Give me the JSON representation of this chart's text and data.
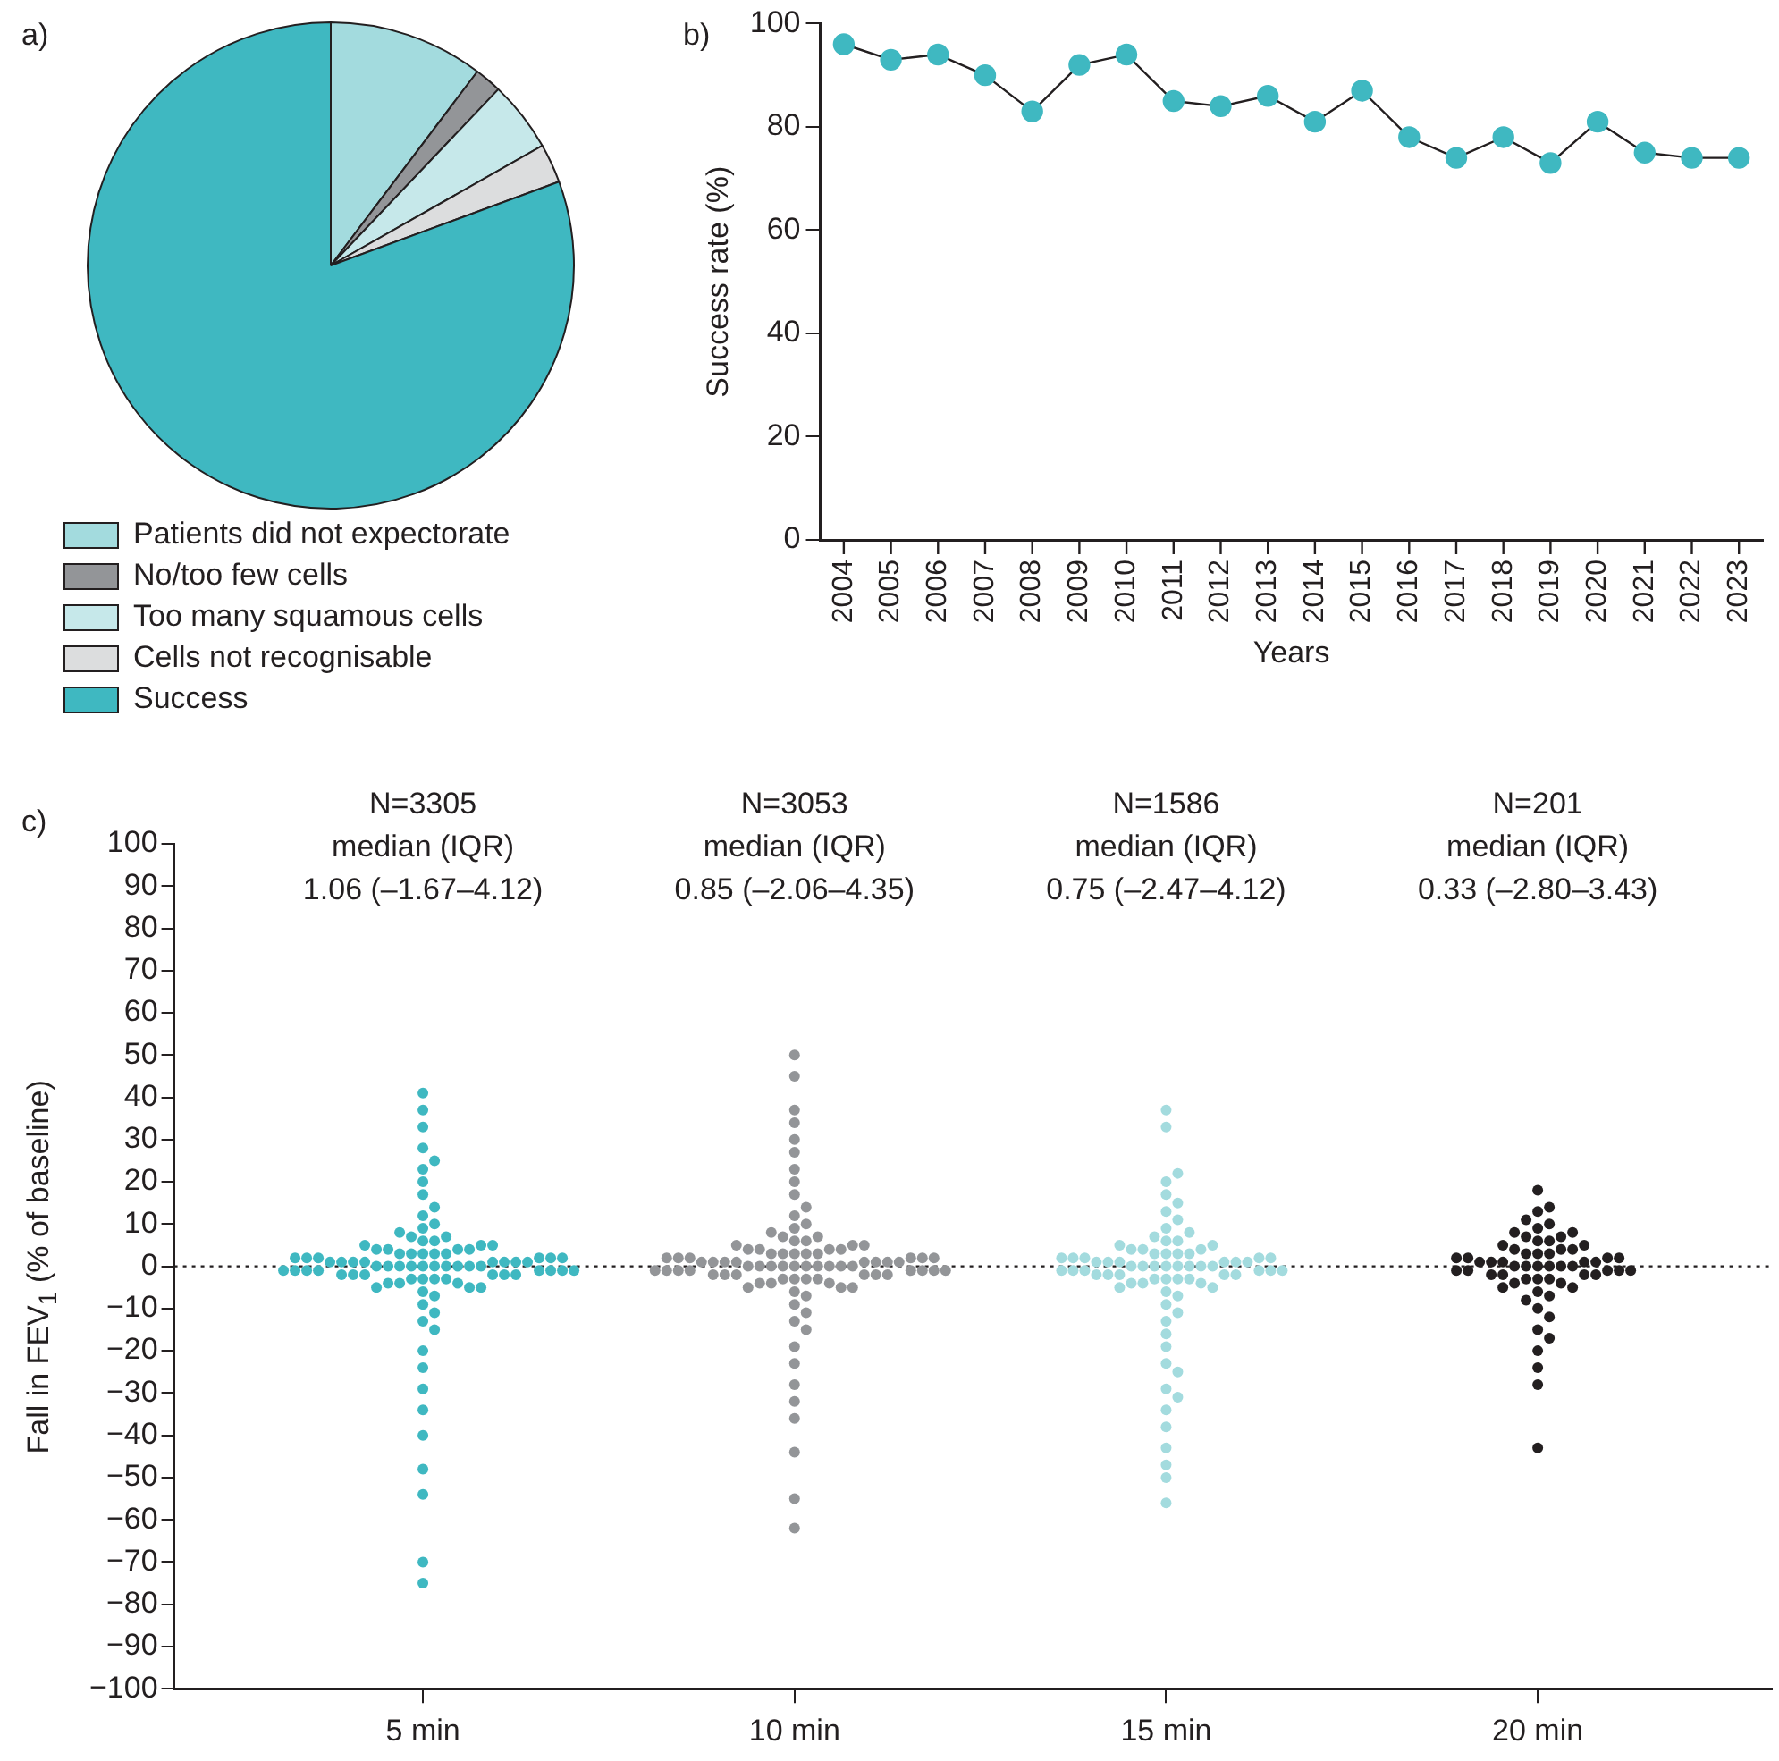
{
  "chart_data": [
    {
      "type": "pie",
      "annotations": [
        "a)"
      ],
      "legend": "bottom",
      "categories": [
        "Patients did not expectorate",
        "No/too few cells",
        "Too many squamous cells",
        "Cells not recognisable",
        "Success"
      ],
      "values": [
        10.3,
        1.8,
        4.7,
        2.6,
        80.6
      ],
      "colors": [
        "#a3dbde",
        "#939598",
        "#c6e8ea",
        "#dcddde",
        "#3fb8c1"
      ]
    },
    {
      "type": "line",
      "annotations": [
        "b)"
      ],
      "xlabel": "Years",
      "ylabel": "Success rate (%)",
      "categories": [
        "2004",
        "2005",
        "2006",
        "2007",
        "2008",
        "2009",
        "2010",
        "2011",
        "2012",
        "2013",
        "2014",
        "2015",
        "2016",
        "2017",
        "2018",
        "2019",
        "2020",
        "2021",
        "2022",
        "2023"
      ],
      "marker": "circle",
      "ylim": [
        0,
        100
      ],
      "yticks": [
        0,
        20,
        40,
        60,
        80,
        100
      ],
      "series": [
        {
          "color": "#3fb8c1",
          "values": [
            96,
            93,
            94,
            90,
            83,
            92,
            94,
            85,
            84,
            86,
            81,
            87,
            78,
            74,
            78,
            73,
            81,
            75,
            74,
            74
          ]
        }
      ]
    },
    {
      "type": "scatter",
      "ylabel": "Fall in FEV$_{1}$ (% of baseline)",
      "categories": [
        "5 min",
        "10 min",
        "15 min",
        "20 min"
      ],
      "ylim": [
        -100,
        100
      ],
      "yticks": [
        -100,
        -90,
        -80,
        -70,
        -60,
        -50,
        -40,
        -30,
        -20,
        -10,
        0,
        10,
        20,
        30,
        40,
        50,
        60,
        70,
        80,
        90,
        100
      ],
      "marker": "circle",
      "ref_lines": [
        {
          "axis": "y",
          "value": 0,
          "line_style": "dotted",
          "color": "#231f20"
        }
      ],
      "annotations": [
        "c)",
        "N=3305\nmedian (IQR)\n1.06 (–1.67–4.12)",
        "N=3053\nmedian (IQR)\n0.85 (–2.06–4.35)",
        "N=1586\nmedian (IQR)\n0.75 (–2.47–4.12)",
        "N=201\nmedian (IQR)\n0.33 (–2.80–3.43)"
      ],
      "series": [
        {
          "color": "#3fb8c1",
          "x": [
            "5 min",
            "5 min",
            "5 min",
            "5 min",
            "5 min",
            "5 min",
            "5 min",
            "5 min",
            "5 min",
            "5 min",
            "5 min",
            "5 min",
            "5 min",
            "5 min",
            "5 min",
            "5 min",
            "5 min",
            "5 min",
            "5 min",
            "5 min",
            "5 min",
            "5 min",
            "5 min",
            "5 min",
            "5 min",
            "5 min",
            "5 min",
            "5 min",
            "5 min",
            "5 min",
            "5 min",
            "5 min",
            "5 min",
            "5 min",
            "5 min",
            "5 min",
            "5 min",
            "5 min",
            "5 min",
            "5 min",
            "5 min",
            "5 min",
            "5 min",
            "5 min",
            "5 min",
            "5 min",
            "5 min",
            "5 min",
            "5 min",
            "5 min",
            "5 min",
            "5 min",
            "5 min",
            "5 min",
            "5 min",
            "5 min",
            "5 min",
            "5 min",
            "5 min",
            "5 min",
            "5 min",
            "5 min",
            "5 min",
            "5 min",
            "5 min",
            "5 min",
            "5 min",
            "5 min",
            "5 min",
            "5 min",
            "5 min",
            "5 min",
            "5 min",
            "5 min",
            "5 min",
            "5 min",
            "5 min",
            "5 min",
            "5 min",
            "5 min",
            "5 min",
            "5 min",
            "5 min",
            "5 min",
            "5 min",
            "5 min",
            "5 min",
            "5 min",
            "5 min",
            "5 min",
            "5 min",
            "5 min"
          ],
          "values": [
            0,
            0,
            0,
            0,
            0,
            0,
            0,
            0,
            0,
            0,
            1,
            1,
            1,
            1,
            1,
            1,
            1,
            1,
            -1,
            -1,
            -1,
            -1,
            -1,
            -1,
            -1,
            -1,
            2,
            2,
            2,
            2,
            2,
            2,
            -2,
            -2,
            -2,
            -2,
            -2,
            -2,
            3,
            3,
            3,
            3,
            3,
            -3,
            -3,
            -3,
            -3,
            4,
            4,
            4,
            4,
            -4,
            -4,
            -4,
            5,
            5,
            5,
            -5,
            -5,
            -5,
            6,
            6,
            -6,
            7,
            7,
            -7,
            8,
            9,
            10,
            12,
            14,
            17,
            -9,
            -11,
            -13,
            -15,
            20,
            23,
            25,
            28,
            33,
            37,
            41,
            -20,
            -24,
            -29,
            -34,
            -40,
            -48,
            -54,
            -70,
            -75
          ]
        },
        {
          "color": "#939598",
          "x": [
            "10 min",
            "10 min",
            "10 min",
            "10 min",
            "10 min",
            "10 min",
            "10 min",
            "10 min",
            "10 min",
            "10 min",
            "10 min",
            "10 min",
            "10 min",
            "10 min",
            "10 min",
            "10 min",
            "10 min",
            "10 min",
            "10 min",
            "10 min",
            "10 min",
            "10 min",
            "10 min",
            "10 min",
            "10 min",
            "10 min",
            "10 min",
            "10 min",
            "10 min",
            "10 min",
            "10 min",
            "10 min",
            "10 min",
            "10 min",
            "10 min",
            "10 min",
            "10 min",
            "10 min",
            "10 min",
            "10 min",
            "10 min",
            "10 min",
            "10 min",
            "10 min",
            "10 min",
            "10 min",
            "10 min",
            "10 min",
            "10 min",
            "10 min",
            "10 min",
            "10 min",
            "10 min",
            "10 min",
            "10 min",
            "10 min",
            "10 min",
            "10 min",
            "10 min",
            "10 min",
            "10 min",
            "10 min",
            "10 min",
            "10 min",
            "10 min",
            "10 min",
            "10 min",
            "10 min",
            "10 min",
            "10 min",
            "10 min",
            "10 min",
            "10 min",
            "10 min",
            "10 min",
            "10 min",
            "10 min",
            "10 min",
            "10 min",
            "10 min",
            "10 min",
            "10 min",
            "10 min",
            "10 min",
            "10 min",
            "10 min",
            "10 min",
            "10 min",
            "10 min",
            "10 min",
            "10 min",
            "10 min"
          ],
          "values": [
            0,
            0,
            0,
            0,
            0,
            0,
            0,
            0,
            0,
            0,
            1,
            1,
            1,
            1,
            1,
            1,
            1,
            1,
            -1,
            -1,
            -1,
            -1,
            -1,
            -1,
            -1,
            -1,
            2,
            2,
            2,
            2,
            2,
            2,
            -2,
            -2,
            -2,
            -2,
            -2,
            -2,
            3,
            3,
            3,
            3,
            3,
            -3,
            -3,
            -3,
            -3,
            4,
            4,
            4,
            4,
            -4,
            -4,
            -4,
            5,
            5,
            5,
            -5,
            -5,
            -5,
            6,
            6,
            -6,
            7,
            7,
            -7,
            8,
            9,
            10,
            12,
            14,
            17,
            -9,
            -11,
            -13,
            -15,
            20,
            23,
            27,
            30,
            34,
            37,
            45,
            50,
            -19,
            -23,
            -28,
            -32,
            -36,
            -44,
            -55,
            -62
          ]
        },
        {
          "color": "#a3dbde",
          "x": [
            "15 min",
            "15 min",
            "15 min",
            "15 min",
            "15 min",
            "15 min",
            "15 min",
            "15 min",
            "15 min",
            "15 min",
            "15 min",
            "15 min",
            "15 min",
            "15 min",
            "15 min",
            "15 min",
            "15 min",
            "15 min",
            "15 min",
            "15 min",
            "15 min",
            "15 min",
            "15 min",
            "15 min",
            "15 min",
            "15 min",
            "15 min",
            "15 min",
            "15 min",
            "15 min",
            "15 min",
            "15 min",
            "15 min",
            "15 min",
            "15 min",
            "15 min",
            "15 min",
            "15 min",
            "15 min",
            "15 min",
            "15 min",
            "15 min",
            "15 min",
            "15 min",
            "15 min",
            "15 min",
            "15 min",
            "15 min",
            "15 min",
            "15 min",
            "15 min",
            "15 min",
            "15 min",
            "15 min",
            "15 min",
            "15 min",
            "15 min",
            "15 min",
            "15 min",
            "15 min",
            "15 min",
            "15 min",
            "15 min",
            "15 min",
            "15 min",
            "15 min",
            "15 min",
            "15 min",
            "15 min",
            "15 min",
            "15 min",
            "15 min",
            "15 min",
            "15 min",
            "15 min",
            "15 min",
            "15 min",
            "15 min"
          ],
          "values": [
            0,
            0,
            0,
            0,
            0,
            0,
            0,
            0,
            1,
            1,
            1,
            1,
            1,
            1,
            -1,
            -1,
            -1,
            -1,
            -1,
            -1,
            2,
            2,
            2,
            2,
            2,
            -2,
            -2,
            -2,
            -2,
            -2,
            3,
            3,
            3,
            3,
            -3,
            -3,
            -3,
            -3,
            4,
            4,
            4,
            -4,
            -4,
            -4,
            5,
            5,
            -5,
            -5,
            6,
            6,
            -6,
            7,
            -7,
            8,
            9,
            11,
            13,
            15,
            -9,
            -11,
            -13,
            20,
            22,
            33,
            37,
            -19,
            -23,
            -25,
            -29,
            -31,
            -34,
            -38,
            -43,
            -47,
            -50,
            -56,
            17,
            -16
          ]
        },
        {
          "color": "#231f20",
          "x": [
            "20 min",
            "20 min",
            "20 min",
            "20 min",
            "20 min",
            "20 min",
            "20 min",
            "20 min",
            "20 min",
            "20 min",
            "20 min",
            "20 min",
            "20 min",
            "20 min",
            "20 min",
            "20 min",
            "20 min",
            "20 min",
            "20 min",
            "20 min",
            "20 min",
            "20 min",
            "20 min",
            "20 min",
            "20 min",
            "20 min",
            "20 min",
            "20 min",
            "20 min",
            "20 min",
            "20 min",
            "20 min",
            "20 min",
            "20 min",
            "20 min",
            "20 min",
            "20 min",
            "20 min",
            "20 min",
            "20 min",
            "20 min",
            "20 min",
            "20 min",
            "20 min",
            "20 min",
            "20 min",
            "20 min",
            "20 min",
            "20 min",
            "20 min",
            "20 min",
            "20 min",
            "20 min",
            "20 min",
            "20 min",
            "20 min",
            "20 min",
            "20 min",
            "20 min",
            "20 min",
            "20 min",
            "20 min"
          ],
          "values": [
            0,
            0,
            0,
            0,
            0,
            0,
            1,
            1,
            1,
            1,
            1,
            -1,
            -1,
            -1,
            -1,
            -1,
            2,
            2,
            2,
            2,
            -2,
            -2,
            -2,
            -2,
            3,
            3,
            3,
            -3,
            -3,
            -3,
            4,
            4,
            4,
            -4,
            -4,
            5,
            5,
            -5,
            -5,
            6,
            6,
            -6,
            7,
            7,
            -7,
            8,
            8,
            -8,
            9,
            10,
            11,
            13,
            14,
            18,
            -10,
            -12,
            -15,
            -17,
            -20,
            -24,
            -28,
            -43
          ]
        }
      ]
    }
  ]
}
